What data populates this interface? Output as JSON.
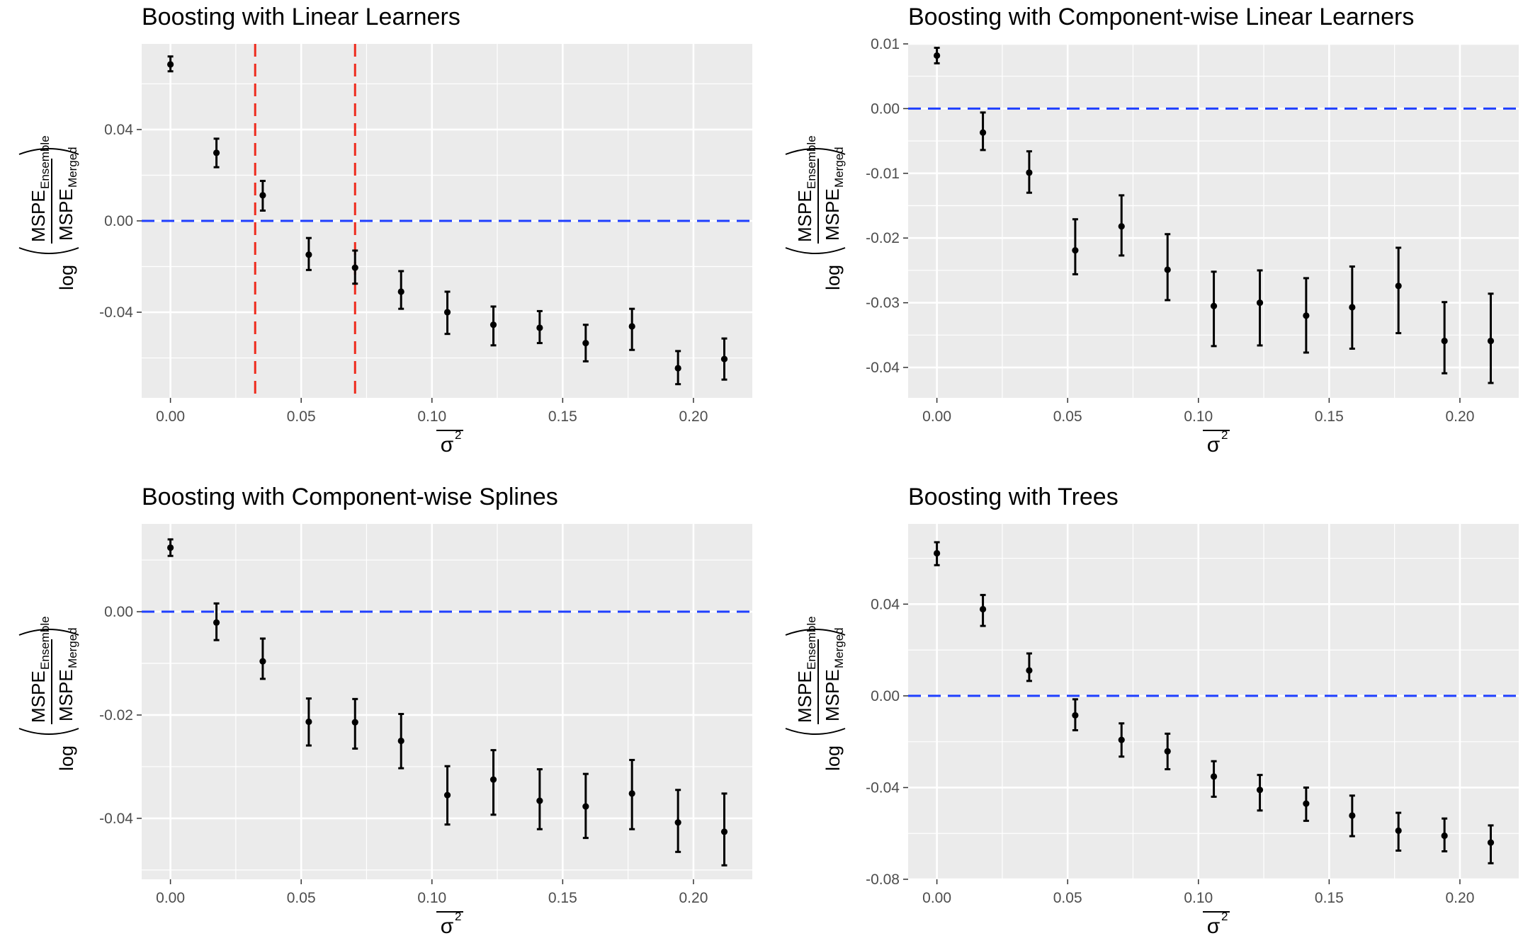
{
  "figure": {
    "x_tick_labels": [
      "0.00",
      "0.05",
      "0.10",
      "0.15",
      "0.20"
    ],
    "x_tick_values": [
      0,
      0.05,
      0.1,
      0.15,
      0.2
    ],
    "x_minor_values": [
      0.025,
      0.075,
      0.125,
      0.175
    ],
    "xlabel_symbol": "σ",
    "xlabel_sup": "2",
    "ylabel_log": "log",
    "ylabel_num_main": "MSPE",
    "ylabel_num_sub": "Ensemble",
    "ylabel_den_main": "MSPE",
    "ylabel_den_sub": "Merged",
    "colors": {
      "panel_bg": "#ebebeb",
      "grid": "#ffffff",
      "ref_line": "#1f3fff",
      "vline": "#ee2a1c",
      "point": "#000000"
    }
  },
  "chart_data": [
    {
      "type": "scatter",
      "title": "Boosting with Linear Learners",
      "xlabel": "σ²",
      "ylabel": "log(MSPE_Ensemble / MSPE_Merged)",
      "xlim": [
        -0.011,
        0.2225
      ],
      "ylim": [
        -0.0775,
        0.0775
      ],
      "y_tick_values": [
        -0.04,
        0,
        0.04
      ],
      "y_tick_labels": [
        "-0.04",
        "0.00",
        "0.04"
      ],
      "y_minor_values": [
        -0.06,
        -0.02,
        0.02,
        0.06
      ],
      "x": [
        0,
        0.0176,
        0.0353,
        0.0529,
        0.0706,
        0.0882,
        0.1059,
        0.1235,
        0.1412,
        0.1588,
        0.1765,
        0.1941,
        0.2118
      ],
      "y": [
        0.0685,
        0.0298,
        0.0112,
        -0.0148,
        -0.0205,
        -0.031,
        -0.04,
        -0.0455,
        -0.0468,
        -0.0535,
        -0.0462,
        -0.0645,
        -0.0605
      ],
      "y_lower": [
        0.0655,
        0.0235,
        0.0045,
        -0.0215,
        -0.0275,
        -0.0385,
        -0.0495,
        -0.0545,
        -0.0535,
        -0.0615,
        -0.0565,
        -0.0715,
        -0.0695
      ],
      "y_upper": [
        0.072,
        0.036,
        0.0175,
        -0.0075,
        -0.013,
        -0.022,
        -0.031,
        -0.0375,
        -0.0395,
        -0.0455,
        -0.0385,
        -0.057,
        -0.0515
      ],
      "hline": 0,
      "vlines": [
        0.0324,
        0.0706
      ]
    },
    {
      "type": "scatter",
      "title": "Boosting with Component-wise Linear Learners",
      "xlabel": "σ²",
      "ylabel": "log(MSPE_Ensemble / MSPE_Merged)",
      "xlim": [
        -0.011,
        0.2225
      ],
      "ylim": [
        -0.0447,
        0.01
      ],
      "y_tick_values": [
        -0.04,
        -0.03,
        -0.02,
        -0.01,
        0.0,
        0.01
      ],
      "y_tick_labels": [
        "-0.04",
        "-0.03",
        "-0.02",
        "-0.01",
        "0.00",
        "0.01"
      ],
      "y_minor_values": [
        -0.035,
        -0.025,
        -0.015,
        -0.005,
        0.005
      ],
      "x": [
        0,
        0.0176,
        0.0353,
        0.0529,
        0.0706,
        0.0882,
        0.1059,
        0.1235,
        0.1412,
        0.1588,
        0.1765,
        0.1941,
        0.2118
      ],
      "y": [
        0.0082,
        -0.0037,
        -0.0099,
        -0.0219,
        -0.0182,
        -0.0249,
        -0.0305,
        -0.03,
        -0.032,
        -0.0307,
        -0.0274,
        -0.0359,
        -0.0359
      ],
      "y_lower": [
        0.007,
        -0.0064,
        -0.013,
        -0.0256,
        -0.0227,
        -0.0296,
        -0.0367,
        -0.0366,
        -0.0377,
        -0.0371,
        -0.0347,
        -0.0409,
        -0.0424
      ],
      "y_upper": [
        0.0094,
        -0.0006,
        -0.0066,
        -0.0171,
        -0.0134,
        -0.0194,
        -0.0252,
        -0.025,
        -0.0262,
        -0.0244,
        -0.0215,
        -0.0299,
        -0.0286
      ],
      "hline": 0
    },
    {
      "type": "scatter",
      "title": "Boosting with Component-wise Splines",
      "xlabel": "σ²",
      "ylabel": "log(MSPE_Ensemble / MSPE_Merged)",
      "xlim": [
        -0.011,
        0.2225
      ],
      "ylim": [
        -0.0518,
        0.017
      ],
      "y_tick_values": [
        -0.04,
        -0.02,
        0.0
      ],
      "y_tick_labels": [
        "-0.04",
        "-0.02",
        "0.00"
      ],
      "y_minor_values": [
        -0.05,
        -0.03,
        -0.01,
        0.01
      ],
      "x": [
        0,
        0.0176,
        0.0353,
        0.0529,
        0.0706,
        0.0882,
        0.1059,
        0.1235,
        0.1412,
        0.1588,
        0.1765,
        0.1941,
        0.2118
      ],
      "y": [
        0.0124,
        -0.0021,
        -0.0096,
        -0.0213,
        -0.0214,
        -0.025,
        -0.0355,
        -0.0325,
        -0.0366,
        -0.0377,
        -0.0352,
        -0.0408,
        -0.0426
      ],
      "y_lower": [
        0.0108,
        -0.0055,
        -0.013,
        -0.0259,
        -0.0265,
        -0.0303,
        -0.0412,
        -0.0393,
        -0.0421,
        -0.0438,
        -0.0421,
        -0.0465,
        -0.0491
      ],
      "y_upper": [
        0.014,
        0.0016,
        -0.0052,
        -0.0168,
        -0.0169,
        -0.0198,
        -0.0299,
        -0.0268,
        -0.0305,
        -0.0314,
        -0.0287,
        -0.0345,
        -0.0352
      ],
      "hline": 0
    },
    {
      "type": "scatter",
      "title": "Boosting with Trees",
      "xlabel": "σ²",
      "ylabel": "log(MSPE_Ensemble / MSPE_Merged)",
      "xlim": [
        -0.011,
        0.2225
      ],
      "ylim": [
        -0.08,
        0.075
      ],
      "y_tick_values": [
        -0.08,
        -0.04,
        0.0,
        0.04
      ],
      "y_tick_labels": [
        "-0.08",
        "-0.04",
        "0.00",
        "0.04"
      ],
      "y_minor_values": [
        -0.06,
        -0.02,
        0.02,
        0.06
      ],
      "x": [
        0,
        0.0176,
        0.0353,
        0.0529,
        0.0706,
        0.0882,
        0.1059,
        0.1235,
        0.1412,
        0.1588,
        0.1765,
        0.1941,
        0.2118
      ],
      "y": [
        0.0622,
        0.0378,
        0.0111,
        -0.0085,
        -0.0192,
        -0.0242,
        -0.0352,
        -0.041,
        -0.047,
        -0.0522,
        -0.0588,
        -0.061,
        -0.064
      ],
      "y_lower": [
        0.057,
        0.0305,
        0.0065,
        -0.015,
        -0.0265,
        -0.032,
        -0.044,
        -0.05,
        -0.0545,
        -0.0612,
        -0.0675,
        -0.0678,
        -0.073
      ],
      "y_upper": [
        0.067,
        0.044,
        0.0185,
        -0.0015,
        -0.012,
        -0.0165,
        -0.0285,
        -0.0345,
        -0.04,
        -0.0435,
        -0.051,
        -0.0535,
        -0.0565
      ],
      "hline": 0
    }
  ]
}
